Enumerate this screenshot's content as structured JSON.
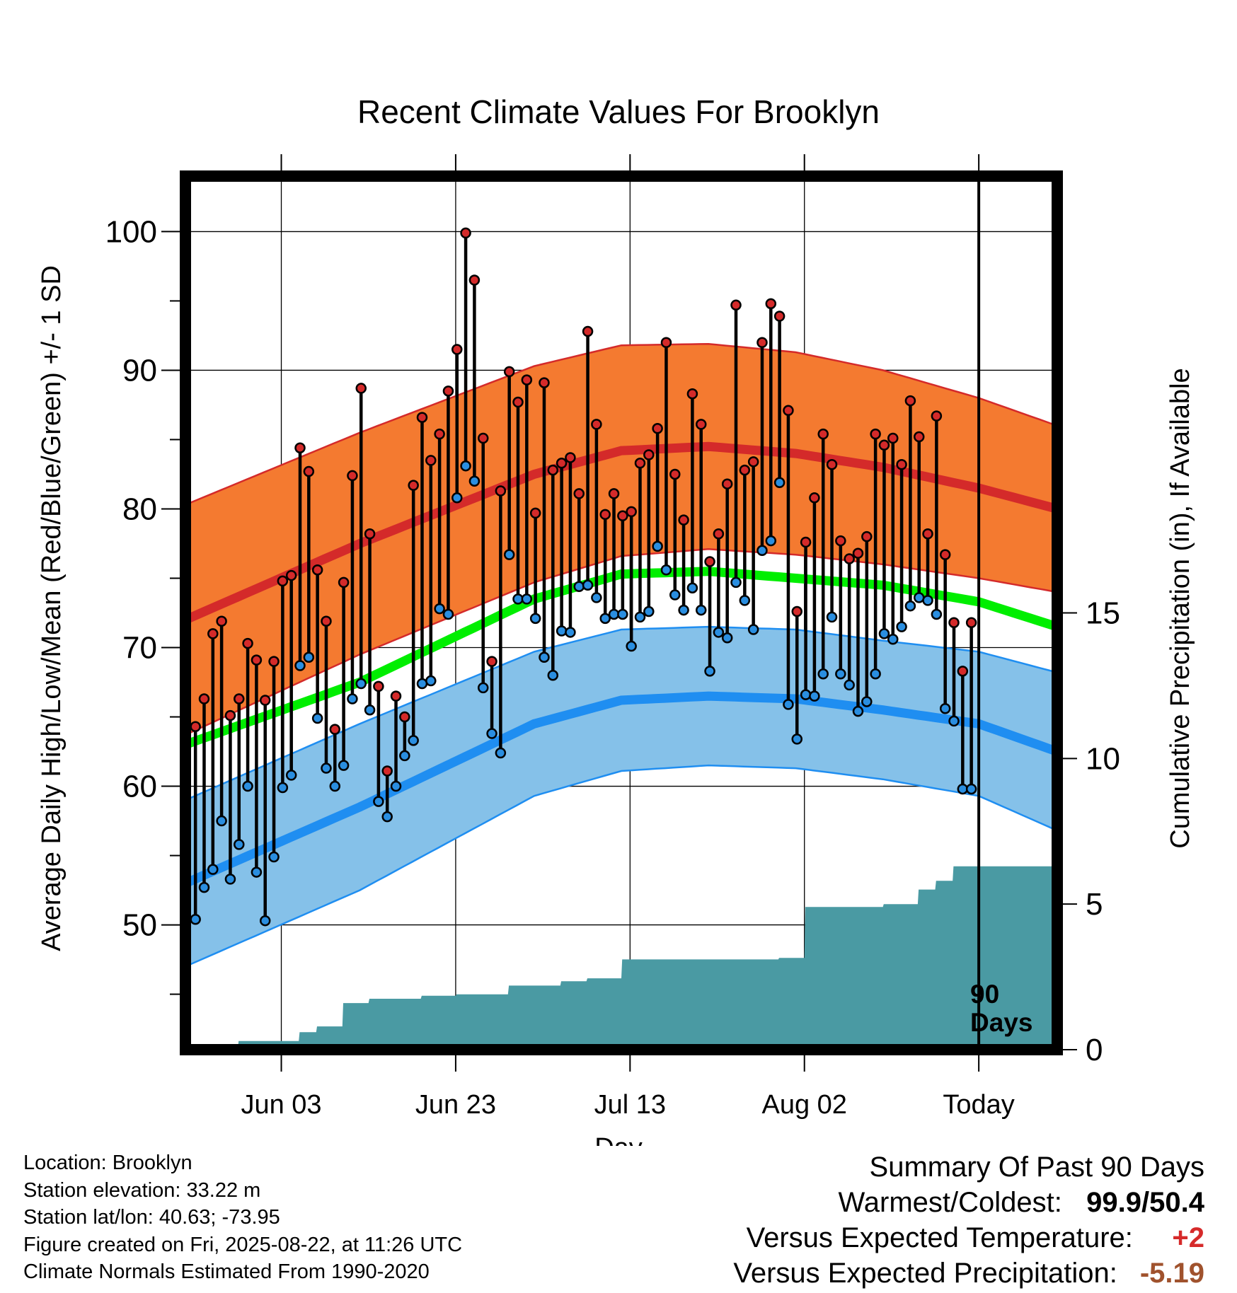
{
  "colors": {
    "high_band": "#f47a30",
    "high_line": "#d42a2a",
    "low_band": "#85c1e9",
    "low_line": "#1f8ef1",
    "mean_line": "#00ee00",
    "precip_fill": "#4a9aa3",
    "high_point": "#d42a2a",
    "low_point": "#2a8ee0"
  },
  "chart_data": {
    "type": "line",
    "title": "Recent Climate Values For Brooklyn",
    "xlabel": "Day",
    "ylabel": "Average Daily High/Low/Mean (Red/Blue/Green) +/- 1 SD",
    "y2label": "Cumulative Precipitation (in), If Available",
    "x_tick_labels": [
      "Jun 03",
      "Jun 23",
      "Jul 13",
      "Aug 02",
      "Today"
    ],
    "x_tick_positions": [
      11,
      31,
      51,
      71,
      91
    ],
    "xlim": [
      0,
      100
    ],
    "ylim": [
      41,
      104
    ],
    "y_ticks": [
      50,
      60,
      70,
      80,
      90,
      100
    ],
    "y2lim": [
      0,
      30
    ],
    "y2_ticks": [
      0,
      5,
      10,
      15
    ],
    "grid": true,
    "annotation": "90 Days",
    "today_x": 91,
    "normal_high": {
      "x": [
        0,
        20,
        40,
        50,
        60,
        70,
        80,
        91,
        100
      ],
      "values": [
        72,
        77.5,
        82.5,
        84.2,
        84.5,
        84,
        83,
        81.5,
        80
      ]
    },
    "normal_high_sd": [
      8.3,
      8,
      7.8,
      7.6,
      7.4,
      7.3,
      7.0,
      6.5,
      6
    ],
    "normal_mean": {
      "x": [
        0,
        20,
        40,
        50,
        60,
        70,
        80,
        91,
        100
      ],
      "values": [
        63,
        67.5,
        73.5,
        75.3,
        75.5,
        75,
        74.5,
        73.3,
        71.5
      ]
    },
    "normal_low": {
      "x": [
        0,
        20,
        40,
        50,
        60,
        70,
        80,
        91,
        100
      ],
      "values": [
        53,
        58.5,
        64.5,
        66.2,
        66.5,
        66.3,
        65.5,
        64.5,
        62.5
      ]
    },
    "normal_low_sd": [
      6,
      6,
      5.2,
      5.1,
      5,
      5,
      5,
      5.2,
      5.7
    ],
    "series": [
      {
        "name": "High",
        "values": [
          64.3,
          66.3,
          71.0,
          71.9,
          65.1,
          66.3,
          70.3,
          69.1,
          66.2,
          69.0,
          74.8,
          75.2,
          84.4,
          82.7,
          75.6,
          71.9,
          64.1,
          74.7,
          82.4,
          88.7,
          78.2,
          67.2,
          61.1,
          66.5,
          65.0,
          81.7,
          86.6,
          83.5,
          85.4,
          88.5,
          91.5,
          99.9,
          96.5,
          85.1,
          69.0,
          81.3,
          89.9,
          87.7,
          89.3,
          79.7,
          89.1,
          82.8,
          83.3,
          83.7,
          81.1,
          92.8,
          86.1,
          79.6,
          81.1,
          79.5,
          79.8,
          83.3,
          83.9,
          85.8,
          92.0,
          82.5,
          79.2,
          88.3,
          86.1,
          76.2,
          78.2,
          81.8,
          94.7,
          82.8,
          83.4,
          92.0,
          94.8,
          93.9,
          87.1,
          72.6,
          77.6,
          80.8,
          85.4,
          83.2,
          77.7,
          76.4,
          76.8,
          78.0,
          85.4,
          84.6,
          85.1,
          83.2,
          87.8,
          85.2,
          78.2,
          86.7,
          76.7,
          71.8,
          68.3,
          71.8
        ]
      },
      {
        "name": "Low",
        "values": [
          50.4,
          52.7,
          54.0,
          57.5,
          53.3,
          55.8,
          60.0,
          53.8,
          50.3,
          54.9,
          59.9,
          60.8,
          68.7,
          69.3,
          64.9,
          61.3,
          60.0,
          61.5,
          66.3,
          67.4,
          65.5,
          58.9,
          57.8,
          60.0,
          62.2,
          63.3,
          67.4,
          67.6,
          72.8,
          72.4,
          80.8,
          83.1,
          82.0,
          67.1,
          63.8,
          62.4,
          76.7,
          73.5,
          73.5,
          72.1,
          69.3,
          68.0,
          71.2,
          71.1,
          74.4,
          74.5,
          73.6,
          72.1,
          72.4,
          72.4,
          70.1,
          72.2,
          72.6,
          77.3,
          75.6,
          73.8,
          72.7,
          74.3,
          72.7,
          68.3,
          71.1,
          70.7,
          74.7,
          73.4,
          71.3,
          77.0,
          77.7,
          81.9,
          65.9,
          63.4,
          66.6,
          66.5,
          68.1,
          72.2,
          68.1,
          67.3,
          65.4,
          66.1,
          68.1,
          71.0,
          70.6,
          71.5,
          73.0,
          73.6,
          73.4,
          72.4,
          65.6,
          64.7,
          59.8,
          59.8
        ]
      },
      {
        "name": "Cumulative Precipitation",
        "x": [
          0,
          6,
          6.1,
          13,
          13.1,
          15,
          15.1,
          18,
          18.1,
          21,
          21.1,
          27,
          27.1,
          31,
          31.1,
          37,
          37.1,
          43,
          43.1,
          46,
          46.1,
          50,
          50.1,
          68,
          68.1,
          71,
          71.1,
          80,
          80.1,
          84,
          84.1,
          86,
          86.1,
          88,
          88.1,
          91,
          100
        ],
        "values": [
          0,
          0,
          0.3,
          0.3,
          0.6,
          0.6,
          0.8,
          0.8,
          1.6,
          1.6,
          1.75,
          1.75,
          1.85,
          1.85,
          1.9,
          1.9,
          2.2,
          2.2,
          2.35,
          2.35,
          2.45,
          2.45,
          3.1,
          3.1,
          3.15,
          3.15,
          4.9,
          4.9,
          5.0,
          5.0,
          5.5,
          5.5,
          5.8,
          5.8,
          6.3,
          6.3,
          6.3
        ]
      }
    ]
  },
  "footer_left": {
    "location": "Location: Brooklyn",
    "elevation": "Station elevation: 33.22 m",
    "latlon": "Station lat/lon: 40.63; -73.95",
    "created": "Figure created on Fri, 2025-08-22, at 11:26 UTC",
    "normals": "Climate Normals Estimated From 1990-2020"
  },
  "summary": {
    "heading": "Summary Of Past 90 Days",
    "warm_cold_label": "Warmest/Coldest:",
    "warm_cold_value": "99.9/50.4",
    "temp_label": "Versus Expected Temperature:",
    "temp_value": "+2",
    "precip_label": "Versus Expected Precipitation:",
    "precip_value": "-5.19"
  }
}
